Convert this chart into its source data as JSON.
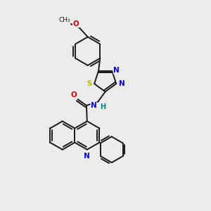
{
  "background_color": "#ebebeb",
  "figsize": [
    3.0,
    3.0
  ],
  "dpi": 100,
  "bond_color": "#1a1a1a",
  "atom_colors": {
    "N": "#0000ee",
    "O": "#dd0000",
    "S": "#bbbb00",
    "H": "#008080",
    "C": "#1a1a1a"
  },
  "lw": 1.4
}
